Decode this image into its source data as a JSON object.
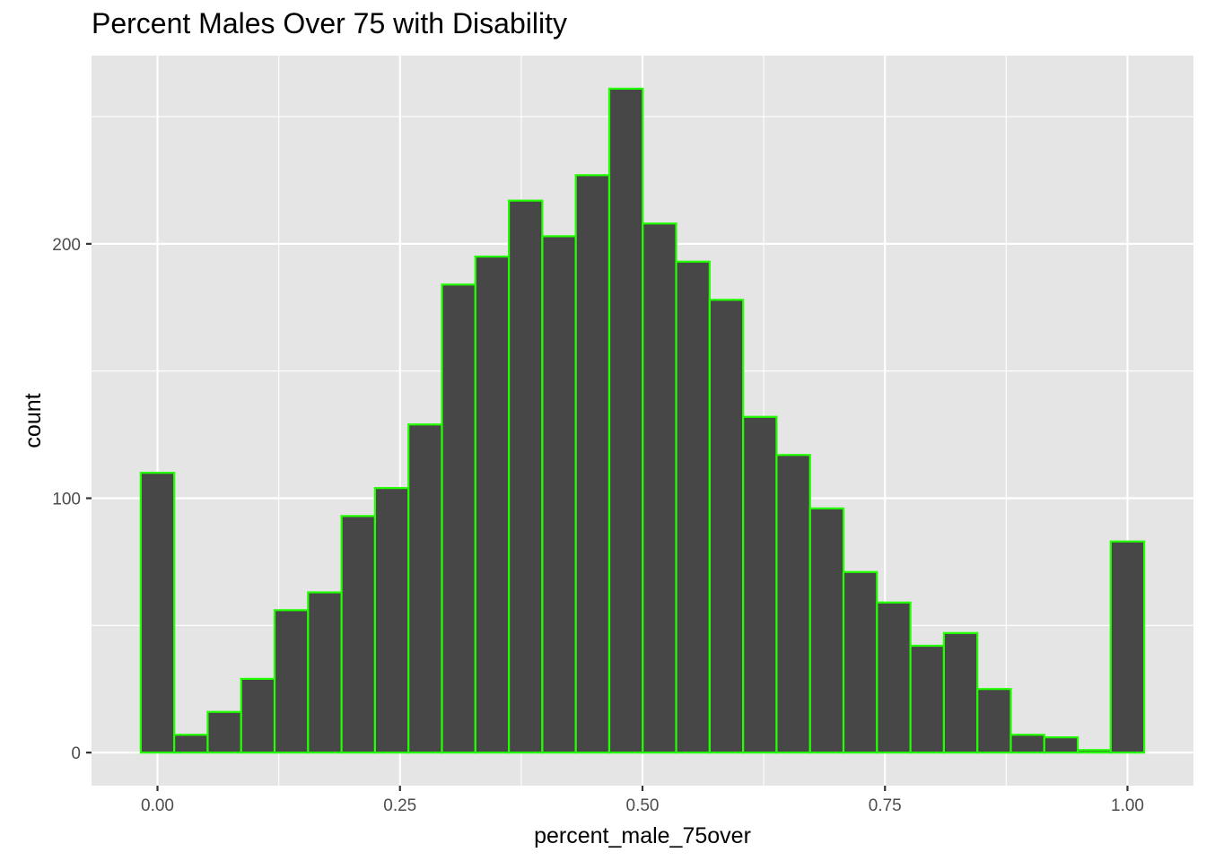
{
  "chart_data": {
    "type": "bar",
    "title": "Percent Males Over 75 with Disability",
    "xlabel": "percent_male_75over",
    "ylabel": "count",
    "bin_width": 0.0345,
    "bin_centers": [
      0.0,
      0.0345,
      0.069,
      0.1035,
      0.138,
      0.1725,
      0.207,
      0.2415,
      0.276,
      0.3105,
      0.345,
      0.3795,
      0.414,
      0.4485,
      0.483,
      0.5175,
      0.552,
      0.5865,
      0.621,
      0.6555,
      0.69,
      0.7245,
      0.759,
      0.7935,
      0.828,
      0.8625,
      0.897,
      0.9315,
      0.966,
      1.0
    ],
    "values": [
      110,
      7,
      16,
      29,
      56,
      63,
      93,
      104,
      129,
      184,
      195,
      217,
      203,
      227,
      261,
      208,
      193,
      178,
      132,
      117,
      96,
      71,
      59,
      42,
      47,
      25,
      7,
      6,
      1,
      83
    ],
    "xlim": [
      -0.068,
      1.068
    ],
    "ylim": [
      -13,
      274
    ],
    "x_ticks": [
      {
        "value": 0.0,
        "label": "0.00"
      },
      {
        "value": 0.25,
        "label": "0.25"
      },
      {
        "value": 0.5,
        "label": "0.50"
      },
      {
        "value": 0.75,
        "label": "0.75"
      },
      {
        "value": 1.0,
        "label": "1.00"
      }
    ],
    "y_ticks": [
      {
        "value": 0,
        "label": "0"
      },
      {
        "value": 100,
        "label": "100"
      },
      {
        "value": 200,
        "label": "200"
      }
    ],
    "bar_fill": "#474747",
    "bar_outline": "#22ff00",
    "panel_background": "#e5e5e5",
    "grid_color": "#ffffff",
    "grid": true
  }
}
